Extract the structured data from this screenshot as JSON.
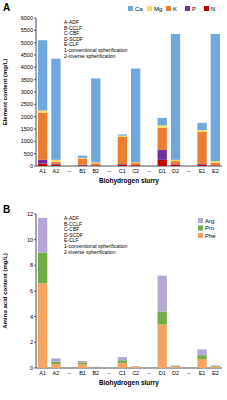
{
  "chart_data": [
    {
      "type": "bar",
      "title": "A",
      "stacked": true,
      "legend": "top",
      "y_label": "Element content (mg/L)",
      "x_label": "Biohydrogen slurry",
      "annotations": [
        "A-ADF",
        "B-CCLF",
        "C-CBF",
        "D-SCDF",
        "E-CLF",
        "1-conventional spherification",
        "2-inverse spherification"
      ],
      "categories": [
        "A1",
        "A2",
        "--",
        "B1",
        "B2",
        "--",
        "C1",
        "C2",
        "--",
        "D1",
        "D2",
        "--",
        "E1",
        "E2"
      ],
      "ylim": [
        0,
        6000
      ],
      "yticks": [
        0,
        500,
        1000,
        1500,
        2000,
        2500,
        3000,
        3500,
        4000,
        4500,
        5000,
        5500,
        6000
      ],
      "series": [
        {
          "name": "N",
          "color": "#c00000",
          "values": [
            100,
            50,
            null,
            20,
            20,
            null,
            50,
            30,
            null,
            250,
            50,
            null,
            50,
            20
          ]
        },
        {
          "name": "P",
          "color": "#7030a0",
          "values": [
            150,
            30,
            null,
            30,
            10,
            null,
            30,
            10,
            null,
            400,
            20,
            null,
            30,
            10
          ]
        },
        {
          "name": "K",
          "color": "#ed7d31",
          "values": [
            1900,
            100,
            null,
            250,
            80,
            null,
            1100,
            80,
            null,
            900,
            130,
            null,
            1300,
            100
          ]
        },
        {
          "name": "Mg",
          "color": "#ffd966",
          "values": [
            100,
            70,
            null,
            30,
            40,
            null,
            50,
            30,
            null,
            100,
            50,
            null,
            70,
            70
          ]
        },
        {
          "name": "Ca",
          "color": "#6fa8dc",
          "values": [
            2850,
            4100,
            null,
            90,
            3400,
            null,
            50,
            3800,
            null,
            300,
            5100,
            null,
            300,
            5150
          ]
        }
      ]
    },
    {
      "type": "bar",
      "title": "B",
      "stacked": true,
      "legend": "upper right",
      "y_label": "Amino acid content (mg/L)",
      "x_label": "Biohydrogen slurry",
      "annotations": [
        "A-ADF",
        "B-CCLF",
        "C-CBF",
        "D-SCDF",
        "E-CLF",
        "1-conventional spherification",
        "2-inverse spherification"
      ],
      "categories": [
        "A1",
        "A2",
        "--",
        "B1",
        "B2",
        "--",
        "C1",
        "C2",
        "--",
        "D1",
        "D2",
        "--",
        "E1",
        "E2"
      ],
      "ylim": [
        0,
        12
      ],
      "yticks": [
        0,
        2,
        4,
        6,
        8,
        10,
        12
      ],
      "series": [
        {
          "name": "Phe",
          "color": "#f4a460",
          "values": [
            6.6,
            0.3,
            null,
            0.3,
            0.05,
            null,
            0.4,
            0.08,
            null,
            3.4,
            0.1,
            null,
            0.7,
            0.1
          ]
        },
        {
          "name": "Pro",
          "color": "#70ad47",
          "values": [
            2.4,
            0.2,
            null,
            0.1,
            0.02,
            null,
            0.2,
            0.03,
            null,
            1.0,
            0.05,
            null,
            0.3,
            0.05
          ]
        },
        {
          "name": "Arg",
          "color": "#b4a7d6",
          "values": [
            2.7,
            0.25,
            null,
            0.15,
            0.03,
            null,
            0.25,
            0.04,
            null,
            2.8,
            0.05,
            null,
            0.45,
            0.05
          ]
        }
      ]
    }
  ]
}
